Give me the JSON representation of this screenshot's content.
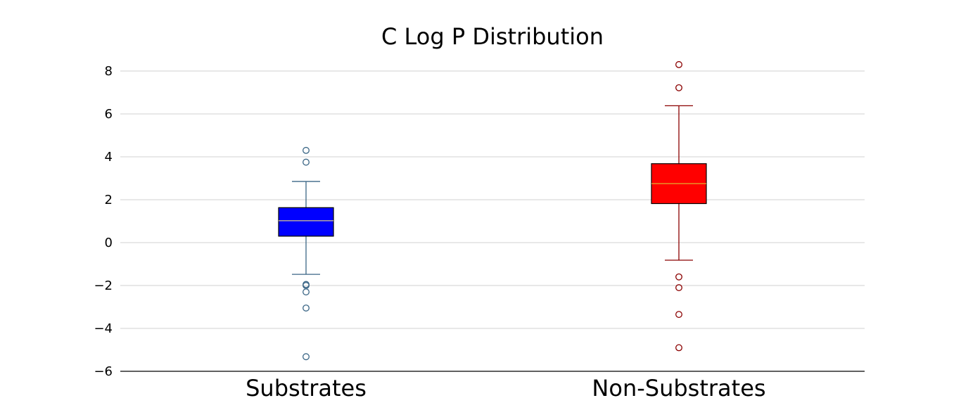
{
  "chart_data": {
    "type": "box",
    "title": "C Log P Distribution",
    "xlabel": "",
    "ylabel": "",
    "ylim": [
      -6,
      8.8
    ],
    "grid": "horizontal",
    "y_ticks": [
      {
        "value": -6,
        "label": "−6"
      },
      {
        "value": -4,
        "label": "−4"
      },
      {
        "value": -2,
        "label": "−2"
      },
      {
        "value": 0,
        "label": "0"
      },
      {
        "value": 2,
        "label": "2"
      },
      {
        "value": 4,
        "label": "4"
      },
      {
        "value": 6,
        "label": "6"
      },
      {
        "value": 8,
        "label": "8"
      }
    ],
    "categories": [
      "Substrates",
      "Non-Substrates"
    ],
    "boxes": [
      {
        "label": "Substrates",
        "fill_color": "#0000ff",
        "whisker_color": "#3b6686",
        "median_color": "#d9c78a",
        "whislo": -1.48,
        "q1": 0.3,
        "median": 1.02,
        "q3": 1.63,
        "whishi": 2.85,
        "fliers": [
          4.3,
          3.75,
          -1.95,
          -2.0,
          -2.3,
          -3.05,
          -5.32
        ]
      },
      {
        "label": "Non-Substrates",
        "fill_color": "#ff0000",
        "whisker_color": "#8b0000",
        "median_color": "#e0b030",
        "whislo": -0.82,
        "q1": 1.82,
        "median": 2.75,
        "q3": 3.68,
        "whishi": 6.38,
        "fliers": [
          8.3,
          7.22,
          -1.6,
          -2.1,
          -3.35,
          -4.9
        ]
      }
    ]
  }
}
